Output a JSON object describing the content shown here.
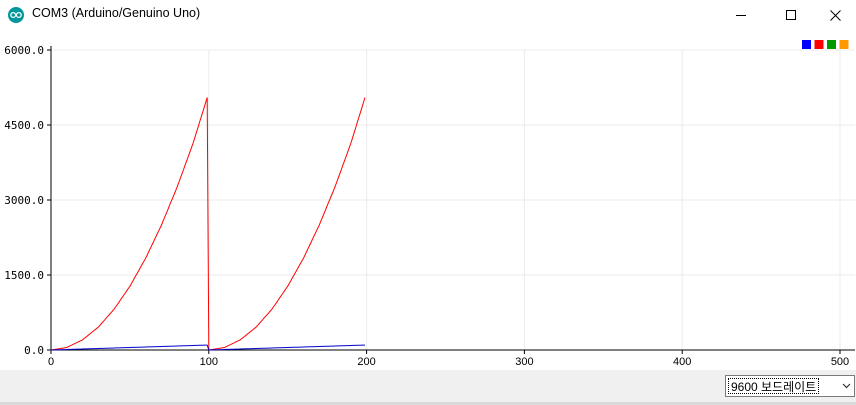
{
  "window": {
    "title": "COM3 (Arduino/Genuino Uno)",
    "app_icon": "arduino-icon",
    "controls": [
      "minimize-icon",
      "maximize-icon",
      "close-icon"
    ]
  },
  "legend": {
    "placement": "top-right",
    "colors": [
      "#0000ff",
      "#ff0000",
      "#009900",
      "#ff9900"
    ]
  },
  "footer": {
    "baud_rate": "9600 보드레이트",
    "dropdown_icon": "chevron-down-icon"
  },
  "chart_data": {
    "type": "line",
    "xlim": [
      0,
      500
    ],
    "ylim": [
      0,
      6000
    ],
    "x_ticks": [
      "0",
      "100",
      "200",
      "300",
      "400",
      "500"
    ],
    "y_ticks": [
      "0.0",
      "1500.0",
      "3000.0",
      "4500.0",
      "6000.0"
    ],
    "grid": true,
    "series": [
      {
        "color": "#ff0000",
        "points": [
          [
            0,
            0
          ],
          [
            10,
            51
          ],
          [
            20,
            204
          ],
          [
            30,
            459
          ],
          [
            40,
            816
          ],
          [
            50,
            1275
          ],
          [
            60,
            1836
          ],
          [
            70,
            2499
          ],
          [
            80,
            3264
          ],
          [
            90,
            4131
          ],
          [
            99,
            5050
          ],
          [
            100,
            0
          ],
          [
            110,
            51
          ],
          [
            120,
            204
          ],
          [
            130,
            459
          ],
          [
            140,
            816
          ],
          [
            150,
            1275
          ],
          [
            160,
            1836
          ],
          [
            170,
            2499
          ],
          [
            180,
            3264
          ],
          [
            190,
            4131
          ],
          [
            199,
            5050
          ]
        ]
      },
      {
        "color": "#0000cc",
        "points": [
          [
            0,
            0
          ],
          [
            20,
            20
          ],
          [
            40,
            40
          ],
          [
            60,
            60
          ],
          [
            80,
            80
          ],
          [
            99,
            99
          ],
          [
            100,
            0
          ],
          [
            120,
            20
          ],
          [
            140,
            40
          ],
          [
            160,
            60
          ],
          [
            180,
            80
          ],
          [
            199,
            99
          ]
        ]
      }
    ]
  }
}
